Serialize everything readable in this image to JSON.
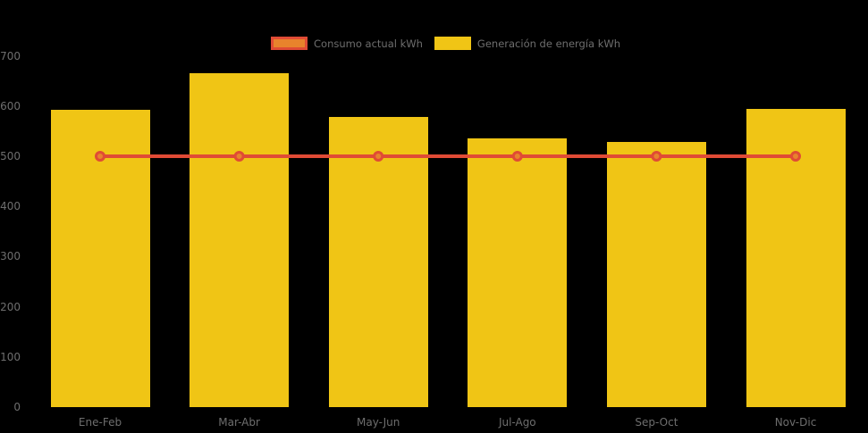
{
  "chart_data": {
    "type": "bar",
    "categories": [
      "Ene-Feb",
      "Mar-Abr",
      "May-Jun",
      "Jul-Ago",
      "Sep-Oct",
      "Nov-Dic"
    ],
    "series": [
      {
        "name": "Consumo actual kWh",
        "type": "line",
        "values": [
          500,
          500,
          500,
          500,
          500,
          500
        ],
        "color": "#e04b35",
        "marker_fill": "#e8832c"
      },
      {
        "name": "Generación de energía kWh",
        "type": "bar",
        "values": [
          592,
          666,
          578,
          536,
          529,
          594
        ],
        "color": "#f0c515"
      }
    ],
    "title": "",
    "xlabel": "",
    "ylabel": "",
    "ylim": [
      0,
      700
    ],
    "yticks": [
      0,
      100,
      200,
      300,
      400,
      500,
      600,
      700
    ],
    "grid": false,
    "legend_position": "top-center",
    "background_color": "#000000",
    "label_color": "#6e6e6e"
  }
}
